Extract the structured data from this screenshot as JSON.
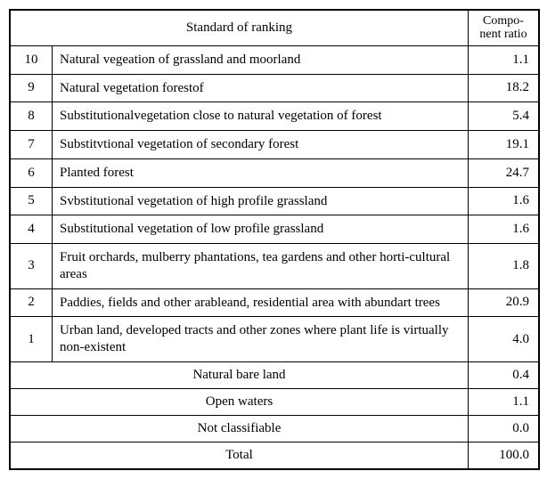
{
  "table": {
    "header": {
      "standard": "Standard of ranking",
      "ratio": "Compo-\nnent ratio"
    },
    "rows": [
      {
        "rank": "10",
        "desc": "Natural vegeation of grassland and moorland",
        "ratio": "1.1"
      },
      {
        "rank": "9",
        "desc": "Natural vegetation forestof",
        "ratio": "18.2"
      },
      {
        "rank": "8",
        "desc": "Substitutionalvegetation close to natural vegetation of forest",
        "ratio": "5.4"
      },
      {
        "rank": "7",
        "desc": "Substitvtional vegetation of secondary forest",
        "ratio": "19.1"
      },
      {
        "rank": "6",
        "desc": "Planted forest",
        "ratio": "24.7"
      },
      {
        "rank": "5",
        "desc": "Svbstitutional vegetation of high profile grassland",
        "ratio": "1.6"
      },
      {
        "rank": "4",
        "desc": "Substitutional vegetation of low profile grassland",
        "ratio": "1.6"
      },
      {
        "rank": "3",
        "desc": "Fruit orchards, mulberry phantations, tea gardens and other horti-cultural areas",
        "ratio": "1.8"
      },
      {
        "rank": "2",
        "desc": "Paddies, fields and other arableand, residential area with abundart trees",
        "ratio": "20.9"
      },
      {
        "rank": "1",
        "desc": "Urban land, developed tracts and other zones where plant life is virtually non-existent",
        "ratio": "4.0"
      }
    ],
    "footer": [
      {
        "label": "Natural bare land",
        "ratio": "0.4"
      },
      {
        "label": "Open waters",
        "ratio": "1.1"
      },
      {
        "label": "Not classifiable",
        "ratio": "0.0"
      },
      {
        "label": "Total",
        "ratio": "100.0"
      }
    ]
  },
  "style": {
    "font_family": "Times New Roman",
    "border_color": "#000000",
    "background": "#ffffff",
    "font_size_body": 15,
    "font_size_header_ratio": 14,
    "col_widths": {
      "rank": 30,
      "ratio": 60
    },
    "padding": "6px 8px"
  }
}
